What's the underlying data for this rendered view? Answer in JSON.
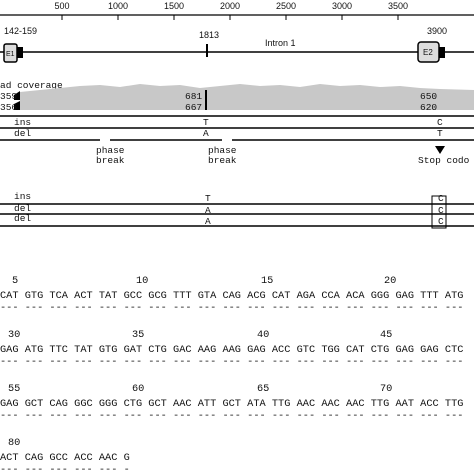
{
  "ruler": {
    "ticks": [
      "500",
      "1000",
      "1500",
      "2000",
      "2500",
      "3000",
      "3500"
    ]
  },
  "gene": {
    "exon1_pos": "142-159",
    "variant_pos": "1813",
    "exon2_pos": "3900",
    "exon1": "E1",
    "exon2": "E2",
    "intron": "Intron 1"
  },
  "coverage": {
    "label": "ad coverage",
    "left": [
      "359",
      "356"
    ],
    "mid": [
      "681",
      "667"
    ],
    "right": [
      "650",
      "620"
    ]
  },
  "alignment1": {
    "rows": [
      {
        "name": "ins",
        "mid": "T",
        "right": "C"
      },
      {
        "name": "del",
        "mid": "A",
        "right": "T"
      }
    ],
    "notes": [
      [
        "phase",
        "break"
      ],
      [
        "phase",
        "break"
      ]
    ],
    "stop": "Stop codo"
  },
  "alignment2": {
    "rows": [
      {
        "name": "ins",
        "mid": "T",
        "right": "C"
      },
      {
        "name": "del",
        "mid": "A",
        "right": "C"
      },
      {
        "name": "del",
        "mid": "A",
        "right": "C"
      }
    ]
  },
  "sequence": {
    "blocks": [
      {
        "numbers": [
          "5",
          "10",
          "15",
          "20"
        ],
        "seq": "CAT GTG TCA ACT TAT GCC GCG TTT GTA CAG ACG CAT AGA CCA ACA GGG GAG TTT ATG",
        "dashes": "--- --- --- --- --- --- --- --- --- --- --- --- --- --- --- --- --- --- ---"
      },
      {
        "numbers": [
          "30",
          "35",
          "40",
          "45"
        ],
        "seq": "GAG ATG TTC TAT GTG GAT CTG GAC AAG AAG GAG ACC GTC TGG CAT CTG GAG GAG CTC",
        "dashes": "--- --- --- --- --- --- --- --- --- --- --- --- --- --- --- --- --- --- ---"
      },
      {
        "numbers": [
          "55",
          "60",
          "65",
          "70"
        ],
        "seq": "GAG GCT CAG GGC GGG CTG GCT AAC ATT GCT ATA TTG AAC AAC AAC TTG AAT ACC TTG",
        "dashes": "--- --- --- --- --- --- --- --- --- --- --- --- --- --- --- --- --- --- ---"
      },
      {
        "numbers": [
          "80"
        ],
        "seq": "ACT CAG GCC ACC AAC G",
        "dashes": "--- --- --- --- --- -"
      }
    ]
  }
}
